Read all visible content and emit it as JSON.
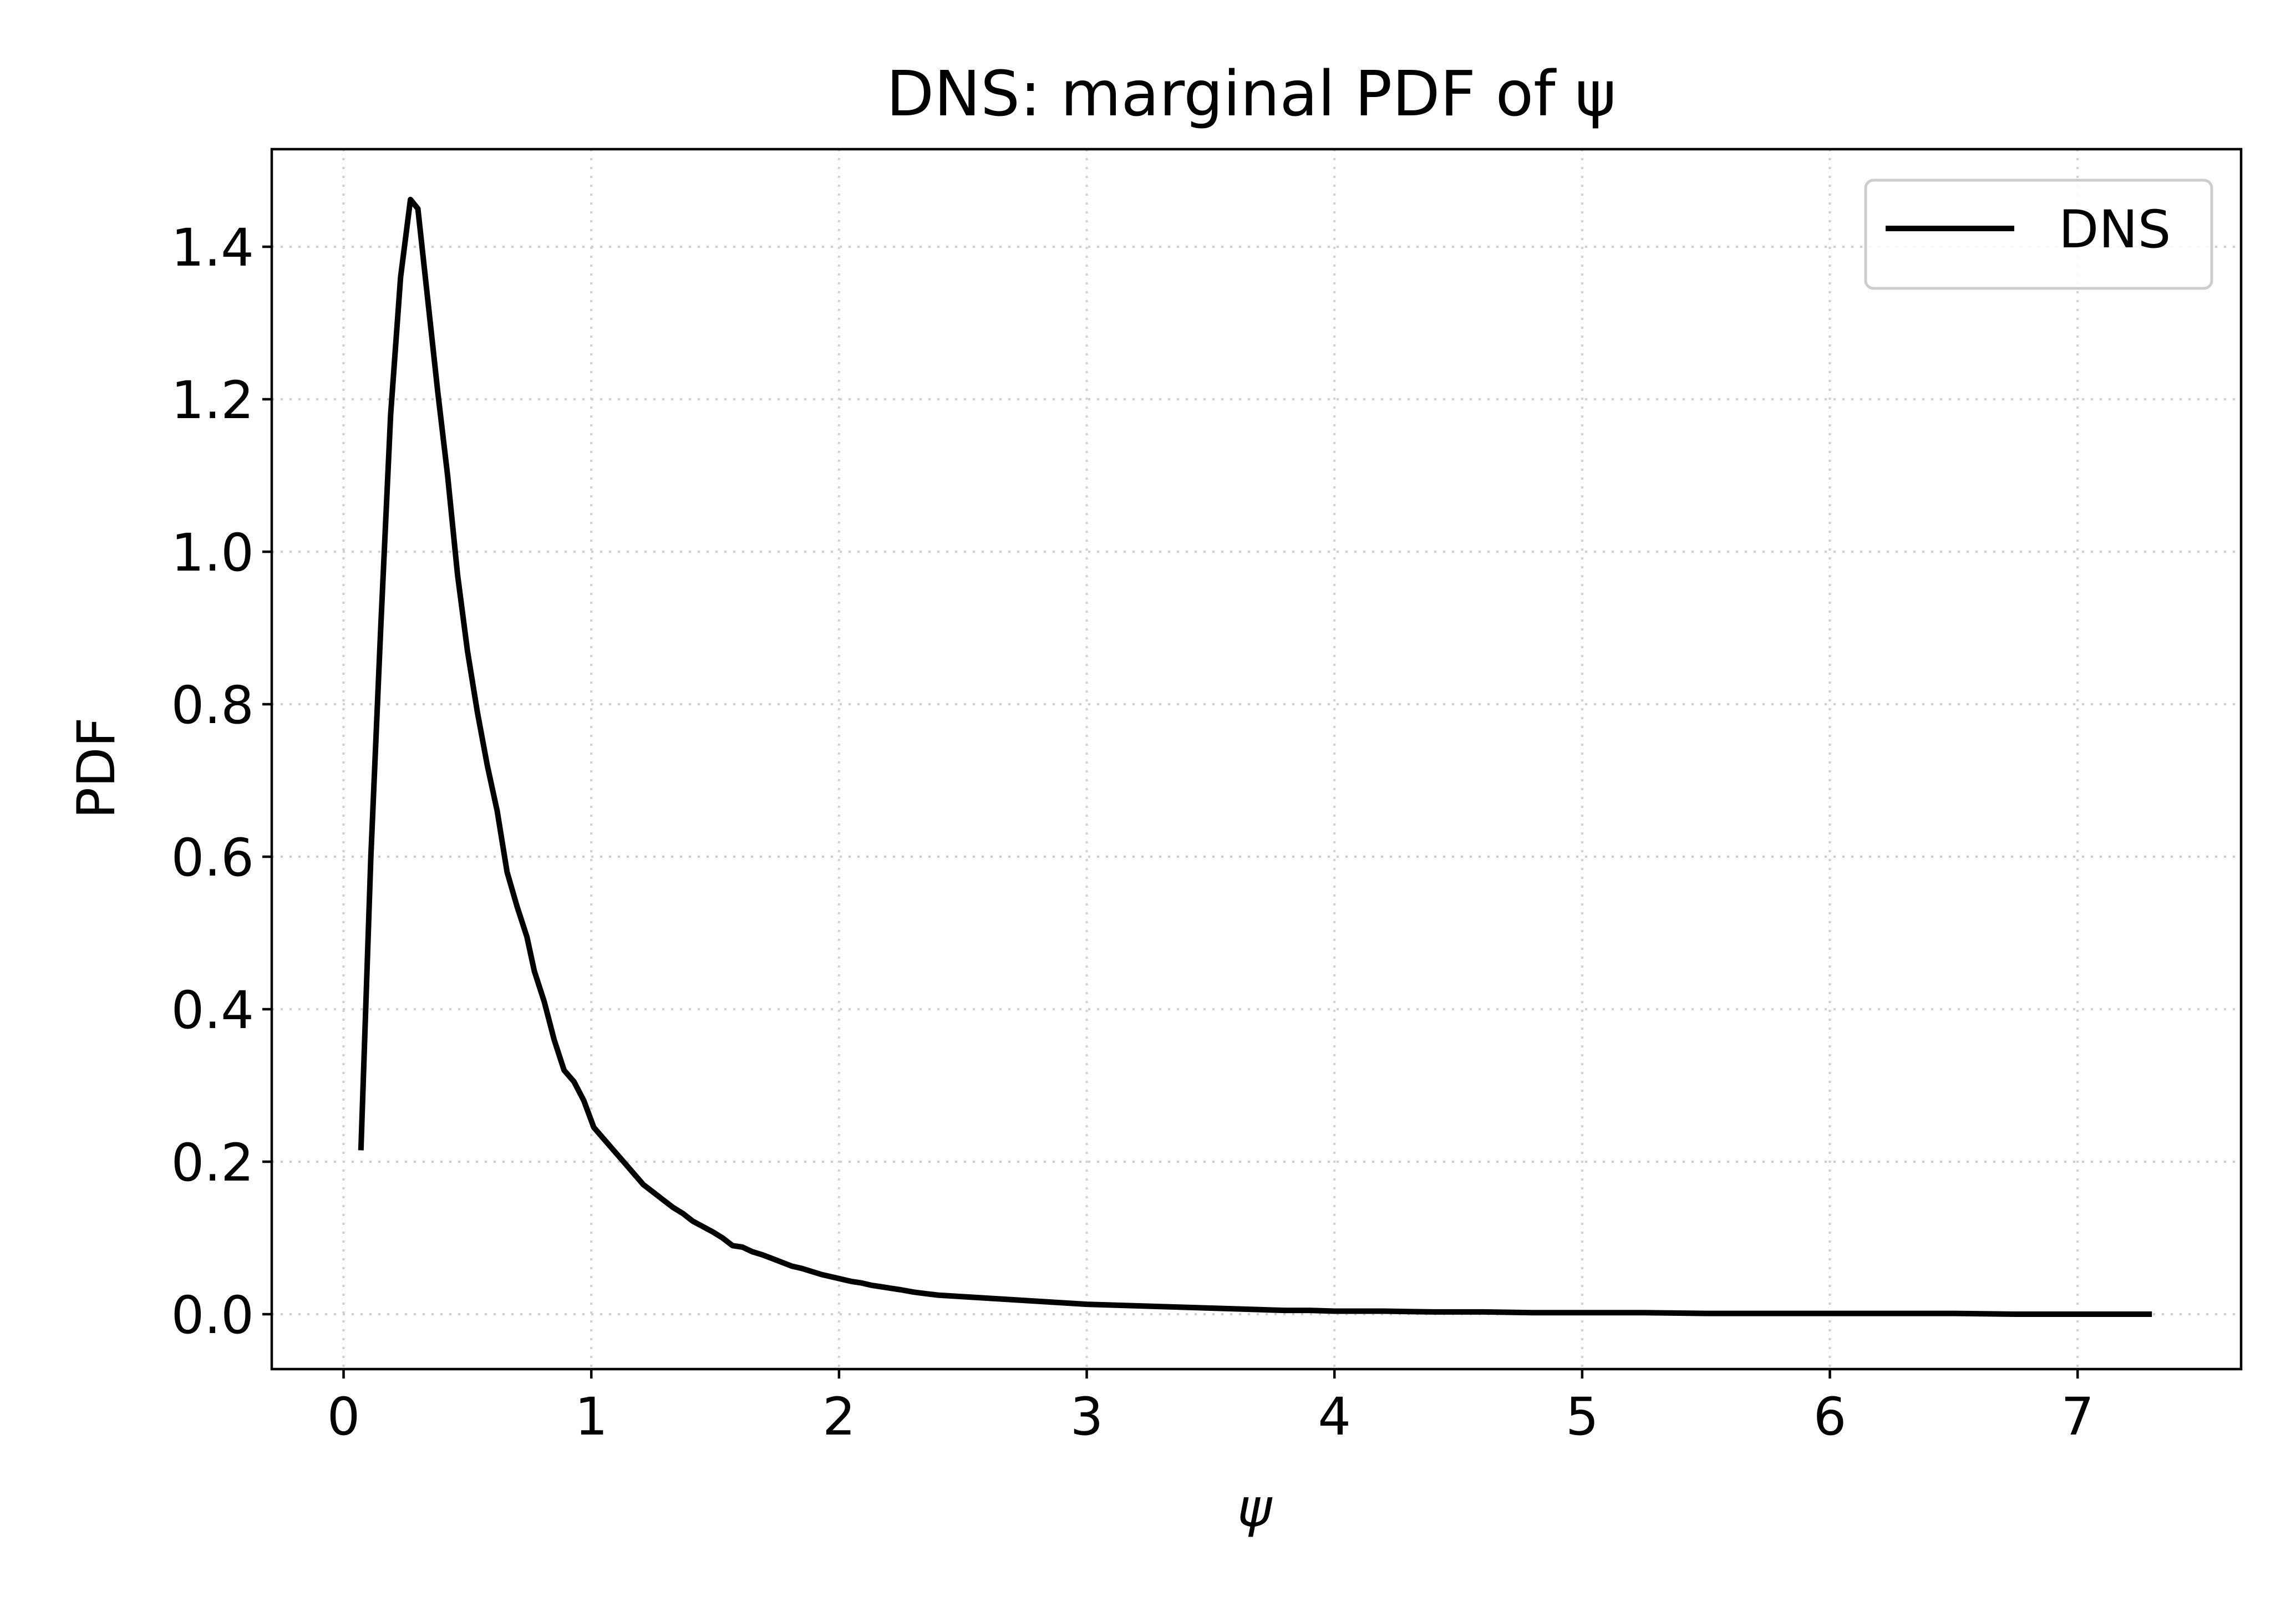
{
  "chart_data": {
    "type": "line",
    "title": "DNS: marginal PDF of ψ",
    "xlabel": "ψ",
    "ylabel": "PDF",
    "xlim": [
      -0.29,
      7.66
    ],
    "ylim": [
      -0.072,
      1.528
    ],
    "xticks": [
      0,
      1,
      2,
      3,
      4,
      5,
      6,
      7
    ],
    "yticks": [
      0.0,
      0.2,
      0.4,
      0.6,
      0.8,
      1.0,
      1.2,
      1.4
    ],
    "ytick_labels": [
      "0.0",
      "0.2",
      "0.4",
      "0.6",
      "0.8",
      "1.0",
      "1.2",
      "1.4"
    ],
    "grid": true,
    "legend_position": "top-right",
    "colors": {
      "series": "#000000",
      "grid": "#d0d0d0",
      "frame": "#000000"
    },
    "series": [
      {
        "name": "DNS",
        "x": [
          0.07,
          0.11,
          0.15,
          0.19,
          0.23,
          0.27,
          0.3,
          0.34,
          0.38,
          0.42,
          0.46,
          0.5,
          0.54,
          0.58,
          0.62,
          0.66,
          0.7,
          0.74,
          0.77,
          0.81,
          0.85,
          0.89,
          0.93,
          0.97,
          1.01,
          1.05,
          1.09,
          1.13,
          1.17,
          1.21,
          1.25,
          1.29,
          1.33,
          1.37,
          1.41,
          1.45,
          1.49,
          1.53,
          1.57,
          1.61,
          1.65,
          1.69,
          1.73,
          1.77,
          1.81,
          1.85,
          1.89,
          1.93,
          1.97,
          2.01,
          2.05,
          2.09,
          2.13,
          2.17,
          2.21,
          2.25,
          2.3,
          2.35,
          2.4,
          2.45,
          2.5,
          2.55,
          2.6,
          2.65,
          2.7,
          2.75,
          2.8,
          2.85,
          2.9,
          2.95,
          3.0,
          3.1,
          3.2,
          3.3,
          3.4,
          3.5,
          3.6,
          3.7,
          3.8,
          3.9,
          4.0,
          4.2,
          4.4,
          4.6,
          4.8,
          5.0,
          5.25,
          5.5,
          5.75,
          6.0,
          6.25,
          6.5,
          6.75,
          7.0,
          7.3
        ],
        "values": [
          0.215,
          0.6,
          0.9,
          1.18,
          1.36,
          1.462,
          1.45,
          1.33,
          1.21,
          1.1,
          0.97,
          0.87,
          0.79,
          0.72,
          0.66,
          0.58,
          0.535,
          0.495,
          0.45,
          0.41,
          0.36,
          0.32,
          0.305,
          0.28,
          0.245,
          0.23,
          0.215,
          0.2,
          0.185,
          0.17,
          0.16,
          0.15,
          0.14,
          0.132,
          0.122,
          0.115,
          0.108,
          0.1,
          0.09,
          0.088,
          0.082,
          0.078,
          0.073,
          0.068,
          0.063,
          0.06,
          0.056,
          0.052,
          0.049,
          0.046,
          0.043,
          0.041,
          0.038,
          0.036,
          0.034,
          0.032,
          0.029,
          0.027,
          0.025,
          0.024,
          0.023,
          0.022,
          0.021,
          0.02,
          0.019,
          0.018,
          0.017,
          0.016,
          0.015,
          0.014,
          0.013,
          0.012,
          0.011,
          0.01,
          0.009,
          0.008,
          0.007,
          0.006,
          0.005,
          0.005,
          0.004,
          0.004,
          0.003,
          0.003,
          0.002,
          0.002,
          0.002,
          0.001,
          0.001,
          0.001,
          0.001,
          0.001,
          0.0,
          0.0,
          0.0
        ]
      }
    ]
  }
}
